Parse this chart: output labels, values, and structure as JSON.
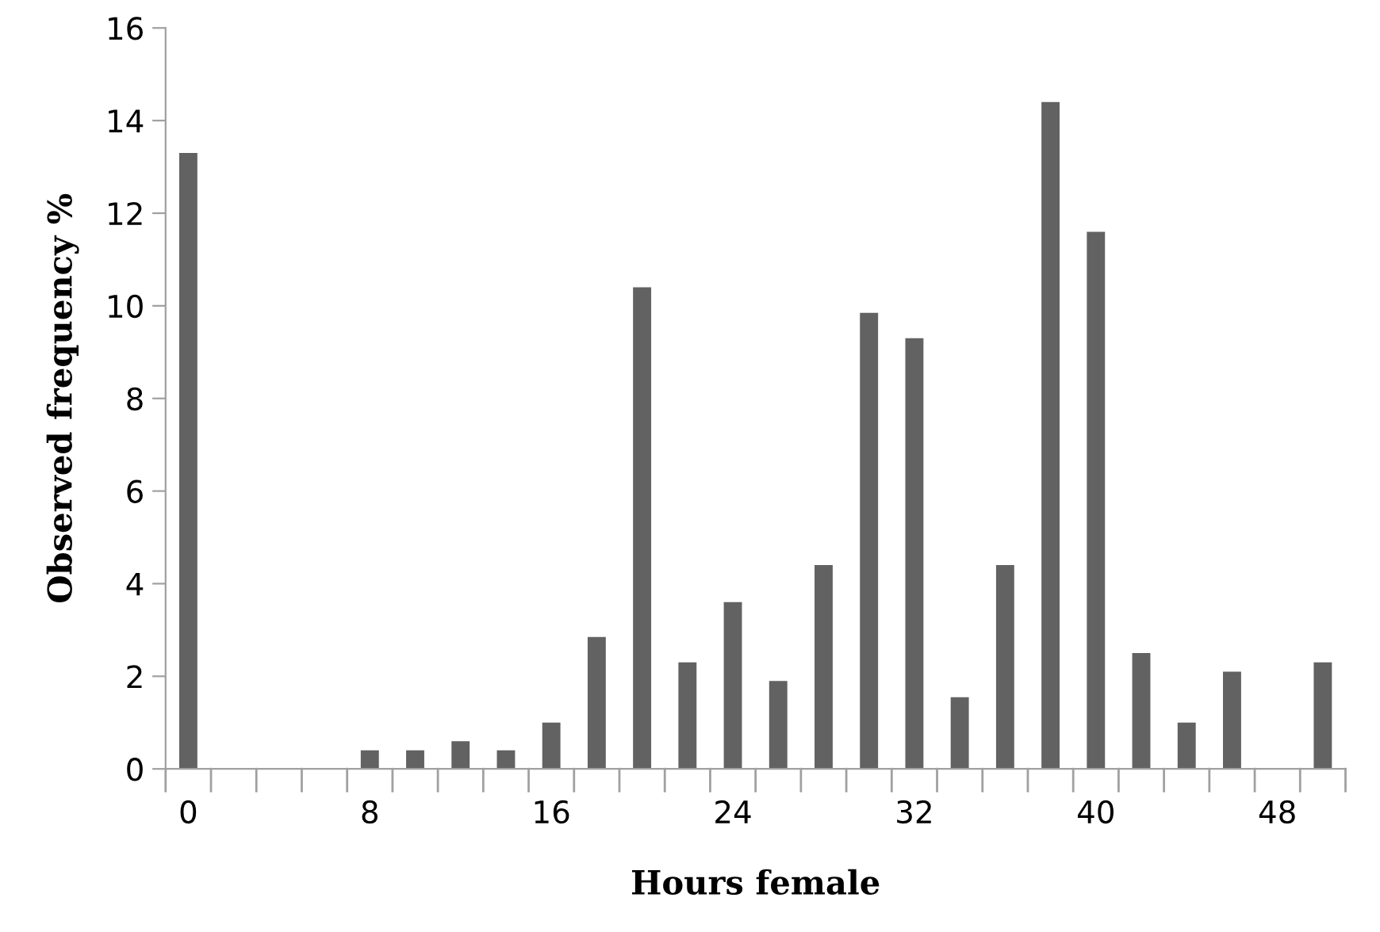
{
  "chart_data": {
    "type": "bar",
    "xlabel": "Hours female",
    "ylabel": "Observed frequency %",
    "categories": [
      "0",
      null,
      null,
      null,
      "8",
      null,
      null,
      null,
      "16",
      null,
      null,
      null,
      "24",
      null,
      null,
      null,
      "32",
      null,
      null,
      null,
      "40",
      null,
      null,
      null,
      "48",
      null
    ],
    "values": [
      13.3,
      0,
      0,
      0,
      0.4,
      0.4,
      0.6,
      0.4,
      1.0,
      2.85,
      10.4,
      2.3,
      3.6,
      1.9,
      4.4,
      9.85,
      9.3,
      1.55,
      4.4,
      14.4,
      11.6,
      2.5,
      1.0,
      2.1,
      0,
      2.3
    ],
    "color": "#626262",
    "ylim": [
      0,
      16
    ],
    "yticks": [
      0,
      2,
      4,
      6,
      8,
      10,
      12,
      14,
      16
    ],
    "grid": false,
    "legend": false
  }
}
